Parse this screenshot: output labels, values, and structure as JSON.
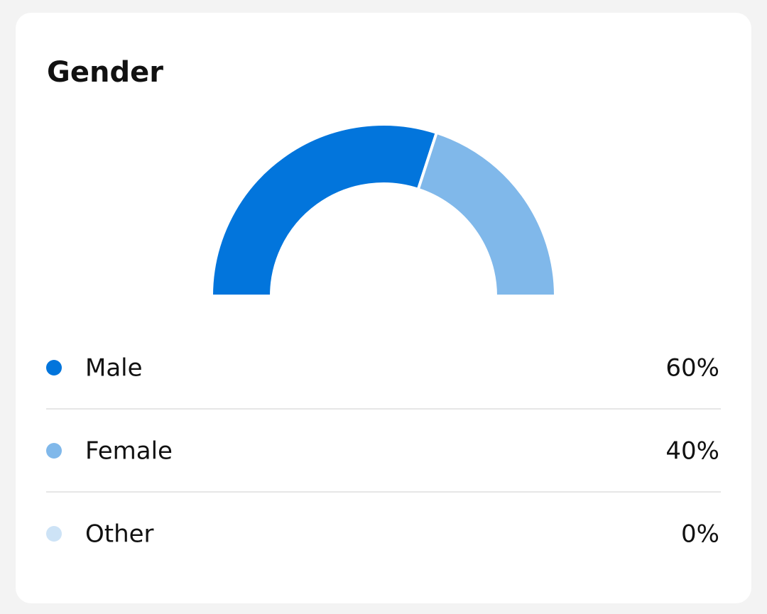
{
  "chart_data": {
    "type": "pie",
    "title": "Gender",
    "categories": [
      "Male",
      "Female",
      "Other"
    ],
    "values": [
      60,
      40,
      0
    ],
    "value_labels": [
      "60%",
      "40%",
      "0%"
    ],
    "colors": [
      "#0275dc",
      "#80b8ea",
      "#cde3f6"
    ]
  }
}
